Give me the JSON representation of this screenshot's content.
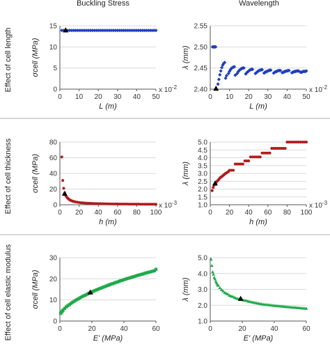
{
  "column_titles": [
    "Buckling Stress",
    "Wavelength"
  ],
  "row_labels": [
    "Effect of cell length",
    "Effect of cell thickness",
    "Effect of cell elastic modulus"
  ],
  "chart_data": [
    {
      "type": "scatter",
      "title": "Buckling Stress",
      "row": "Effect of cell length",
      "xlabel": "L (m)",
      "ylabel": "σcell (MPa)",
      "x_multiplier": "x 10",
      "x_multiplier_exp": "-2",
      "xlim": [
        0,
        50
      ],
      "ylim": [
        0,
        15
      ],
      "xticks": [
        "0",
        "10",
        "20",
        "30",
        "40",
        "50"
      ],
      "yticks": [
        "0",
        "5",
        "10",
        "15"
      ],
      "color": "#1f3fbf",
      "marker": "diamond",
      "series": [
        {
          "x": [
            1,
            2,
            3,
            4,
            5,
            6,
            7,
            8,
            9,
            10,
            11,
            12,
            13,
            14,
            15,
            16,
            17,
            18,
            19,
            20,
            21,
            22,
            23,
            24,
            25,
            26,
            27,
            28,
            29,
            30,
            31,
            32,
            33,
            34,
            35,
            36,
            37,
            38,
            39,
            40,
            41,
            42,
            43,
            44,
            45,
            46,
            47,
            48,
            49,
            50
          ],
          "y": [
            13.9,
            13.9,
            13.9,
            13.9,
            13.9,
            13.9,
            13.9,
            13.9,
            13.9,
            13.9,
            13.9,
            13.9,
            13.9,
            13.9,
            13.9,
            13.9,
            13.9,
            13.9,
            13.9,
            13.9,
            13.9,
            13.9,
            13.9,
            13.9,
            13.9,
            13.9,
            13.9,
            13.9,
            13.9,
            13.9,
            13.9,
            13.9,
            13.9,
            13.9,
            13.9,
            13.9,
            13.9,
            13.9,
            13.9,
            13.9,
            13.9,
            13.9,
            13.9,
            13.9,
            13.9,
            13.9,
            13.9,
            13.9,
            13.9,
            13.9
          ]
        }
      ],
      "highlight": {
        "x": 3,
        "y": 13.9
      }
    },
    {
      "type": "scatter",
      "title": "Wavelength",
      "row": "Effect of cell length",
      "xlabel": "L (m)",
      "ylabel": "λ (mm)",
      "x_multiplier": "x 10",
      "x_multiplier_exp": "-2",
      "xlim": [
        0,
        50
      ],
      "ylim": [
        2.4,
        2.55
      ],
      "xticks": [
        "0",
        "10",
        "20",
        "30",
        "40",
        "50"
      ],
      "yticks": [
        "2.40",
        "2.45",
        "2.50",
        "2.55"
      ],
      "color": "#1f3fbf",
      "marker": "diamond",
      "series": [
        {
          "x": [
            1.2,
            1.6,
            2.0,
            2.4,
            2.8,
            4.0,
            4.5,
            5.0,
            5.5,
            6.0,
            6.5,
            7.0,
            7.5,
            8.0,
            8.5,
            9.5,
            10.0,
            10.5,
            11.0,
            11.5,
            12.0,
            12.5,
            13.0,
            14.0,
            14.5,
            15.0,
            15.5,
            16.0,
            16.5,
            17.0,
            17.5,
            18.5,
            19.0,
            19.5,
            20.0,
            20.5,
            21.0,
            21.5,
            22.0,
            23.5,
            24.0,
            24.5,
            25.0,
            25.5,
            26.0,
            26.5,
            27.0,
            28.0,
            28.5,
            29.0,
            29.5,
            30.0,
            30.5,
            31.0,
            31.5,
            33.0,
            33.5,
            34.0,
            34.5,
            35.0,
            35.5,
            36.0,
            36.5,
            37.5,
            38.0,
            38.5,
            39.0,
            39.5,
            40.0,
            40.5,
            41.0,
            42.5,
            43.0,
            43.5,
            44.0,
            44.5,
            45.0,
            45.5,
            46.0,
            47.0,
            47.5,
            48.0,
            48.5,
            49.0,
            49.5,
            50.0
          ],
          "y": [
            2.5,
            2.5,
            2.5,
            2.5,
            2.5,
            2.412,
            2.423,
            2.434,
            2.443,
            2.451,
            2.457,
            2.461,
            2.463,
            2.426,
            2.432,
            2.437,
            2.442,
            2.446,
            2.449,
            2.451,
            2.452,
            2.453,
            2.433,
            2.437,
            2.441,
            2.444,
            2.446,
            2.448,
            2.449,
            2.45,
            2.45,
            2.436,
            2.439,
            2.441,
            2.443,
            2.445,
            2.446,
            2.447,
            2.447,
            2.437,
            2.439,
            2.441,
            2.443,
            2.444,
            2.445,
            2.446,
            2.446,
            2.438,
            2.44,
            2.441,
            2.442,
            2.443,
            2.444,
            2.445,
            2.445,
            2.438,
            2.44,
            2.441,
            2.442,
            2.443,
            2.444,
            2.444,
            2.444,
            2.439,
            2.44,
            2.441,
            2.442,
            2.443,
            2.443,
            2.444,
            2.444,
            2.439,
            2.44,
            2.441,
            2.442,
            2.442,
            2.443,
            2.443,
            2.443,
            2.44,
            2.44,
            2.441,
            2.442,
            2.442,
            2.442,
            2.443
          ]
        }
      ],
      "highlight": {
        "x": 3,
        "y": 2.401
      }
    },
    {
      "type": "scatter",
      "title": "Buckling Stress",
      "row": "Effect of cell thickness",
      "xlabel": "h (m)",
      "ylabel": "σcell (MPa)",
      "x_multiplier": "x 10",
      "x_multiplier_exp": "-3",
      "xlim": [
        0,
        100
      ],
      "ylim": [
        0,
        80
      ],
      "xticks": [
        "0",
        "20",
        "40",
        "60",
        "80",
        "100"
      ],
      "yticks": [
        "0",
        "20",
        "40",
        "60",
        "80"
      ],
      "color": "#b01c1c",
      "marker": "circle",
      "series": [
        {
          "x": [
            2,
            3,
            4,
            5,
            6,
            7,
            8,
            9,
            10,
            11,
            12,
            13,
            14,
            15,
            16,
            18,
            20,
            22,
            24,
            26,
            28,
            30,
            32,
            34,
            36,
            38,
            40,
            42,
            44,
            46,
            48,
            50,
            52,
            54,
            56,
            58,
            60,
            62,
            64,
            66,
            68,
            70,
            72,
            74,
            76,
            78,
            80,
            82,
            84,
            86,
            88,
            90,
            92,
            94,
            96,
            98,
            100
          ],
          "y": [
            61,
            31,
            21,
            15,
            12,
            10,
            8.5,
            7.5,
            6.5,
            5.8,
            5.2,
            4.7,
            4.3,
            4.0,
            3.7,
            3.3,
            2.9,
            2.6,
            2.4,
            2.2,
            2.0,
            1.9,
            1.8,
            1.7,
            1.6,
            1.5,
            1.4,
            1.35,
            1.3,
            1.25,
            1.2,
            1.15,
            1.1,
            1.05,
            1.0,
            0.98,
            0.95,
            0.92,
            0.9,
            0.88,
            0.86,
            0.84,
            0.82,
            0.8,
            0.78,
            0.77,
            0.75,
            0.74,
            0.72,
            0.71,
            0.7,
            0.69,
            0.68,
            0.67,
            0.66,
            0.65,
            0.64
          ]
        }
      ],
      "highlight": {
        "x": 5,
        "y": 14
      }
    },
    {
      "type": "scatter",
      "title": "Wavelength",
      "row": "Effect of cell thickness",
      "xlabel": "h (m)",
      "ylabel": "λ (mm)",
      "x_multiplier": "x 10",
      "x_multiplier_exp": "-3",
      "xlim": [
        0,
        100
      ],
      "ylim": [
        1.0,
        5.0
      ],
      "xticks": [
        "0",
        "20",
        "40",
        "60",
        "80",
        "100"
      ],
      "yticks": [
        "1.0",
        "1.5",
        "2.0",
        "2.5",
        "3.0",
        "3.5",
        "4.0",
        "4.5",
        "5.0"
      ],
      "color": "#b01c1c",
      "marker": "circle",
      "series": [
        {
          "x": [
            2,
            3,
            4,
            6,
            7,
            8,
            9,
            10,
            11,
            12,
            13,
            14,
            15,
            16,
            17,
            18,
            19,
            20,
            22,
            24,
            26,
            28,
            30,
            32,
            34,
            36,
            38,
            40,
            42,
            44,
            46,
            48,
            50,
            52,
            54,
            56,
            58,
            60,
            62,
            64,
            66,
            68,
            70,
            72,
            74,
            76,
            78,
            80,
            82,
            84,
            86,
            88,
            90,
            92,
            94,
            96,
            98,
            100
          ],
          "y": [
            1.9,
            2.1,
            2.25,
            2.4,
            2.5,
            2.55,
            2.62,
            2.7,
            2.76,
            2.8,
            2.85,
            2.9,
            2.95,
            3.0,
            3.04,
            3.08,
            3.12,
            3.2,
            3.2,
            3.2,
            3.6,
            3.6,
            3.6,
            3.6,
            3.6,
            3.8,
            3.8,
            3.8,
            4.05,
            4.05,
            4.05,
            4.05,
            4.05,
            4.05,
            4.3,
            4.3,
            4.3,
            4.3,
            4.3,
            4.6,
            4.6,
            4.6,
            4.6,
            4.6,
            4.6,
            4.6,
            4.6,
            5.0,
            5.0,
            5.0,
            5.0,
            5.0,
            5.0,
            5.0,
            5.0,
            5.0,
            5.0,
            5.0
          ]
        }
      ],
      "highlight": {
        "x": 5,
        "y": 2.35
      }
    },
    {
      "type": "scatter",
      "title": "Buckling Stress",
      "row": "Effect of cell elastic modulus",
      "xlabel": "E' (MPa)",
      "ylabel": "σcell (MPa)",
      "x_multiplier": "",
      "x_multiplier_exp": "",
      "xlim": [
        0,
        60
      ],
      "ylim": [
        0,
        30
      ],
      "xticks": [
        "0",
        "20",
        "40",
        "60"
      ],
      "yticks": [
        "0",
        "10",
        "20",
        "30"
      ],
      "color": "#1faa4a",
      "marker": "square",
      "series": [
        {
          "x": [
            0.5,
            1,
            1.5,
            2,
            3,
            4,
            5,
            6,
            7,
            8,
            9,
            10,
            11,
            12,
            13,
            14,
            15,
            16,
            17,
            18,
            19,
            20,
            21,
            22,
            23,
            24,
            25,
            26,
            27,
            28,
            29,
            30,
            31,
            32,
            33,
            34,
            35,
            36,
            37,
            38,
            39,
            40,
            41,
            42,
            43,
            44,
            45,
            46,
            47,
            48,
            49,
            50,
            51,
            52,
            53,
            54,
            55,
            56,
            57,
            58,
            59,
            60
          ],
          "y": [
            3.6,
            4.2,
            4.7,
            5.2,
            6.0,
            6.7,
            7.3,
            7.8,
            8.4,
            8.9,
            9.4,
            9.9,
            10.3,
            10.7,
            11.2,
            11.6,
            12.0,
            12.3,
            12.7,
            13.1,
            13.4,
            13.8,
            14.1,
            14.5,
            14.8,
            15.1,
            15.4,
            15.7,
            16.0,
            16.3,
            16.6,
            16.9,
            17.2,
            17.5,
            17.7,
            18.0,
            18.3,
            18.5,
            18.8,
            19.1,
            19.3,
            19.6,
            19.8,
            20.1,
            20.3,
            20.5,
            20.8,
            21.0,
            21.2,
            21.5,
            21.7,
            21.9,
            22.1,
            22.3,
            22.6,
            22.8,
            23.0,
            23.2,
            23.4,
            23.6,
            23.8,
            24.5
          ]
        }
      ],
      "highlight": {
        "x": 19,
        "y": 13.5
      }
    },
    {
      "type": "scatter",
      "title": "Wavelength",
      "row": "Effect of cell elastic modulus",
      "xlabel": "E' (MPa)",
      "ylabel": "λ (mm)",
      "x_multiplier": "",
      "x_multiplier_exp": "",
      "xlim": [
        0,
        60
      ],
      "ylim": [
        1.0,
        5.0
      ],
      "xticks": [
        "0",
        "20",
        "40",
        "60"
      ],
      "yticks": [
        "1.0",
        "2.0",
        "3.0",
        "4.0",
        "5.0"
      ],
      "color": "#1faa4a",
      "marker": "triangle",
      "series": [
        {
          "x": [
            0.5,
            1,
            1.5,
            2,
            2.5,
            3,
            3.5,
            4,
            4.5,
            5,
            6,
            7,
            8,
            9,
            10,
            11,
            12,
            13,
            14,
            15,
            16,
            17,
            18,
            19,
            20,
            21,
            22,
            23,
            24,
            25,
            26,
            27,
            28,
            29,
            30,
            31,
            32,
            33,
            34,
            35,
            36,
            37,
            38,
            39,
            40,
            41,
            42,
            43,
            44,
            45,
            46,
            47,
            48,
            49,
            50,
            51,
            52,
            53,
            54,
            55,
            56,
            57,
            58,
            59,
            60
          ],
          "y": [
            4.9,
            4.5,
            4.1,
            3.95,
            3.75,
            3.65,
            3.5,
            3.4,
            3.3,
            3.25,
            3.1,
            2.98,
            2.9,
            2.8,
            2.75,
            2.7,
            2.62,
            2.58,
            2.55,
            2.5,
            2.45,
            2.42,
            2.4,
            2.38,
            2.35,
            2.32,
            2.3,
            2.28,
            2.25,
            2.22,
            2.2,
            2.18,
            2.16,
            2.14,
            2.12,
            2.1,
            2.08,
            2.06,
            2.05,
            2.04,
            2.03,
            2.02,
            2.0,
            1.99,
            1.98,
            1.97,
            1.96,
            1.95,
            1.94,
            1.93,
            1.92,
            1.91,
            1.9,
            1.89,
            1.88,
            1.87,
            1.86,
            1.86,
            1.85,
            1.84,
            1.83,
            1.82,
            1.81,
            1.8,
            1.8
          ]
        }
      ],
      "highlight": {
        "x": 19,
        "y": 2.4
      }
    }
  ]
}
